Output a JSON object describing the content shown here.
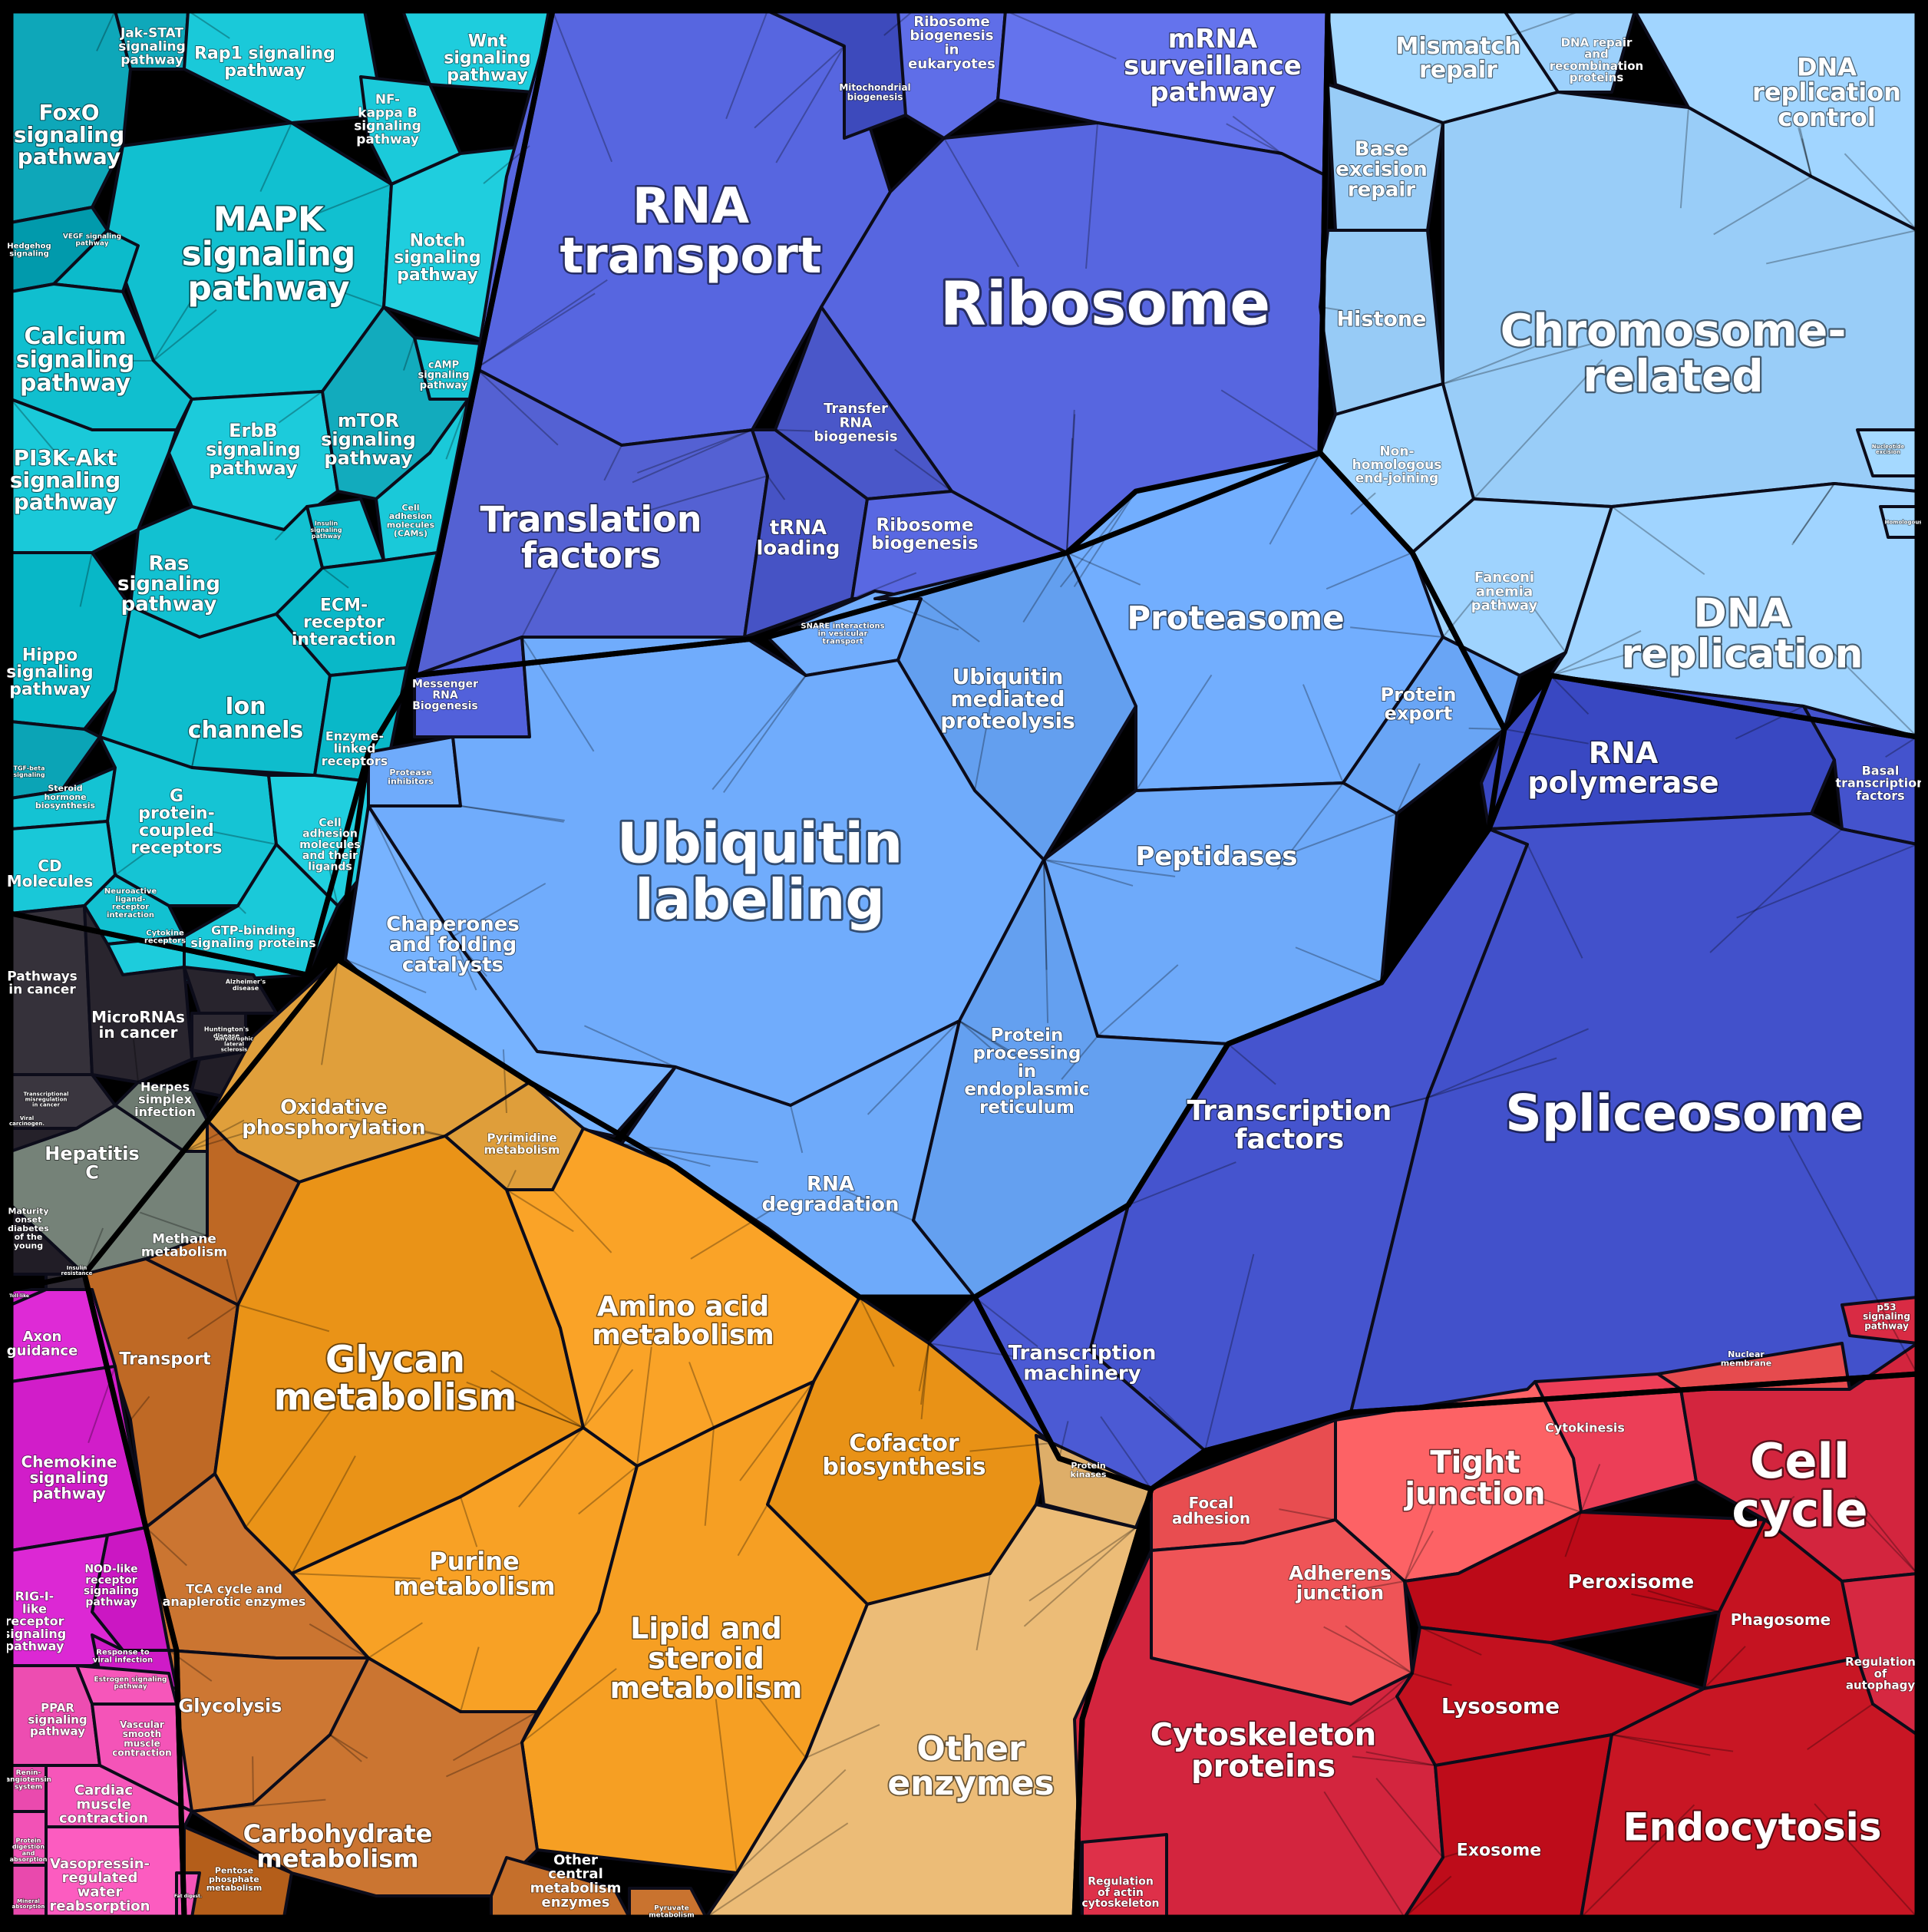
{
  "colors": {
    "teal": "#15c4d4",
    "teal_dark": "#0aa3b5",
    "indigo": "#5766e0",
    "indigo_dark": "#4a57c9",
    "blue": "#6aa6f6",
    "light_blue": "#9cd0fb",
    "dark_blue": "#4453cd",
    "orange": "#f29b1f",
    "orange_light": "#e3a23e",
    "brown": "#c06a26",
    "sand": "#e8b873",
    "dark": "#2e2a33",
    "slate": "#6d7a70",
    "magenta": "#d420cc",
    "pink": "#f050b4",
    "red": "#e0324b",
    "crimson": "#c2101e",
    "salmon": "#f2575a",
    "outline": "#000000"
  },
  "regions": {
    "signaling": [
      {
        "id": "mapk",
        "label": "MAPK signaling pathway"
      },
      {
        "id": "foxo",
        "label": "FoxO signaling pathway"
      },
      {
        "id": "jak",
        "label": "Jak-STAT signaling pathway"
      },
      {
        "id": "rap1",
        "label": "Rap1 signaling pathway"
      },
      {
        "id": "wnt",
        "label": "Wnt signaling pathway"
      },
      {
        "id": "nfkb",
        "label": "NF-kappa B signaling pathway"
      },
      {
        "id": "notch",
        "label": "Notch signaling pathway"
      },
      {
        "id": "calcium",
        "label": "Calcium signaling pathway"
      },
      {
        "id": "pi3k",
        "label": "PI3K-Akt signaling pathway"
      },
      {
        "id": "erbb",
        "label": "ErbB signaling pathway"
      },
      {
        "id": "mtor",
        "label": "mTOR signaling pathway"
      },
      {
        "id": "camp",
        "label": "cAMP signaling pathway"
      },
      {
        "id": "ras",
        "label": "Ras signaling pathway"
      },
      {
        "id": "cams",
        "label": "Cell adhesion molecules (CAMs)"
      },
      {
        "id": "ecm",
        "label": "ECM-receptor interaction"
      },
      {
        "id": "hippo",
        "label": "Hippo signaling pathway"
      },
      {
        "id": "ion",
        "label": "Ion channels"
      },
      {
        "id": "enzlinked",
        "label": "Enzyme-linked receptors"
      },
      {
        "id": "steroid",
        "label": "Steroid hormone biosynthesis"
      },
      {
        "id": "gpcr",
        "label": "G protein-coupled receptors"
      },
      {
        "id": "cellad",
        "label": "Cell adhesion molecules and their ligands"
      },
      {
        "id": "cd",
        "label": "CD Molecules"
      },
      {
        "id": "neuro",
        "label": "Neuroactive ligand-receptor interaction"
      },
      {
        "id": "cytokine",
        "label": "Cytokine receptors"
      },
      {
        "id": "gtp",
        "label": "GTP-binding signaling proteins"
      },
      {
        "id": "hedgehog",
        "label": "Hedgehog signaling pathway"
      },
      {
        "id": "vegf",
        "label": "VEGF signaling pathway"
      },
      {
        "id": "tgf",
        "label": "TGF-beta signaling pathway"
      },
      {
        "id": "insulin",
        "label": "Insulin signaling pathway"
      }
    ],
    "translation": [
      {
        "id": "rnatransport",
        "label": "RNA transport"
      },
      {
        "id": "ribosome",
        "label": "Ribosome"
      },
      {
        "id": "mrnasurv",
        "label": "mRNA surveillance pathway"
      },
      {
        "id": "ribosomebioeuk",
        "label": "Ribosome biogenesis in eukaryotes"
      },
      {
        "id": "mitobio",
        "label": "Mitochondrial biogenesis"
      },
      {
        "id": "transfer",
        "label": "Transfer RNA biogenesis"
      },
      {
        "id": "translation",
        "label": "Translation factors"
      },
      {
        "id": "trna",
        "label": "tRNA loading"
      },
      {
        "id": "ribobio",
        "label": "Ribosome biogenesis"
      },
      {
        "id": "messenger",
        "label": "Messenger RNA Biogenesis"
      }
    ],
    "chromosome": [
      {
        "id": "mismatch",
        "label": "Mismatch repair"
      },
      {
        "id": "dnarepairprot",
        "label": "DNA repair and recombination proteins"
      },
      {
        "id": "dnarepctrl",
        "label": "DNA replication control"
      },
      {
        "id": "base",
        "label": "Base excision repair"
      },
      {
        "id": "histone",
        "label": "Histone"
      },
      {
        "id": "chromosome",
        "label": "Chromosome-related"
      },
      {
        "id": "nhej",
        "label": "Non-homologous end-joining"
      },
      {
        "id": "fanconi",
        "label": "Fanconi anemia pathway"
      },
      {
        "id": "dnarep",
        "label": "DNA replication"
      },
      {
        "id": "nucleotide",
        "label": "Nucleotide excision repair"
      },
      {
        "id": "homologous",
        "label": "Homologous recombination"
      }
    ],
    "proteostasis": [
      {
        "id": "ubiquitin",
        "label": "Ubiquitin labeling"
      },
      {
        "id": "ubimed",
        "label": "Ubiquitin mediated proteolysis"
      },
      {
        "id": "snare",
        "label": "SNARE interactions in vesicular transport"
      },
      {
        "id": "proteasome",
        "label": "Proteasome"
      },
      {
        "id": "protexport",
        "label": "Protein export"
      },
      {
        "id": "peptidases",
        "label": "Peptidases"
      },
      {
        "id": "protinhib",
        "label": "Protease inhibitors"
      },
      {
        "id": "chaperones",
        "label": "Chaperones and folding catalysts"
      },
      {
        "id": "protproc",
        "label": "Protein processing in endoplasmic reticulum"
      },
      {
        "id": "rnadeg",
        "label": "RNA degradation"
      }
    ],
    "transcription": [
      {
        "id": "rnapol",
        "label": "RNA polymerase"
      },
      {
        "id": "basal",
        "label": "Basal transcription factors"
      },
      {
        "id": "spliceosome",
        "label": "Spliceosome"
      },
      {
        "id": "tf",
        "label": "Transcription factors"
      },
      {
        "id": "tm",
        "label": "Transcription machinery"
      }
    ],
    "disease": [
      {
        "id": "pathcancer",
        "label": "Pathways in cancer"
      },
      {
        "id": "mirna",
        "label": "MicroRNAs in cancer"
      },
      {
        "id": "alz",
        "label": "Alzheimer's disease"
      },
      {
        "id": "hunt",
        "label": "Huntington's disease"
      },
      {
        "id": "amyo",
        "label": "Amyotrophic lateral sclerosis"
      },
      {
        "id": "tmis",
        "label": "Transcriptional misregulation in cancer"
      },
      {
        "id": "herpes",
        "label": "Herpes simplex infection"
      },
      {
        "id": "hepc",
        "label": "Hepatitis C"
      },
      {
        "id": "mody",
        "label": "Maturity onset diabetes of the young"
      },
      {
        "id": "viral",
        "label": "Viral carcinogenesis"
      },
      {
        "id": "insres",
        "label": "Insulin resistance"
      }
    ],
    "metabolism": [
      {
        "id": "oxphos",
        "label": "Oxidative phosphorylation"
      },
      {
        "id": "pyrim",
        "label": "Pyrimidine metabolism"
      },
      {
        "id": "methane",
        "label": "Methane metabolism"
      },
      {
        "id": "transport",
        "label": "Transport"
      },
      {
        "id": "glycan",
        "label": "Glycan metabolism"
      },
      {
        "id": "aa",
        "label": "Amino acid metabolism"
      },
      {
        "id": "cofactor",
        "label": "Cofactor biosynthesis"
      },
      {
        "id": "purine",
        "label": "Purine metabolism"
      },
      {
        "id": "tca",
        "label": "TCA cycle and anaplerotic enzymes"
      },
      {
        "id": "lipid",
        "label": "Lipid and steroid metabolism"
      },
      {
        "id": "glycolysis",
        "label": "Glycolysis"
      },
      {
        "id": "carb",
        "label": "Carbohydrate metabolism"
      },
      {
        "id": "pentose",
        "label": "Pentose phosphate metabolism"
      },
      {
        "id": "othercentral",
        "label": "Other central metabolism enzymes"
      },
      {
        "id": "pyruvate",
        "label": "Pyruvate metabolism"
      },
      {
        "id": "protkin",
        "label": "Protein kinases"
      },
      {
        "id": "otherenz",
        "label": "Other enzymes"
      }
    ],
    "immune": [
      {
        "id": "axon",
        "label": "Axon guidance"
      },
      {
        "id": "chemokine",
        "label": "Chemokine signaling pathway"
      },
      {
        "id": "nod",
        "label": "NOD-like receptor signaling pathway"
      },
      {
        "id": "rig",
        "label": "RIG-I-like receptor signaling pathway"
      },
      {
        "id": "viralresp",
        "label": "Response to viral infection"
      },
      {
        "id": "estrogen",
        "label": "Estrogen signaling pathway"
      },
      {
        "id": "ppar",
        "label": "PPAR signaling pathway"
      },
      {
        "id": "vascular",
        "label": "Vascular smooth muscle contraction"
      },
      {
        "id": "reninang",
        "label": "Renin-angiotensin system"
      },
      {
        "id": "cardiac",
        "label": "Cardiac muscle contraction"
      },
      {
        "id": "protdig",
        "label": "Protein digestion and absorption"
      },
      {
        "id": "vaso",
        "label": "Vasopressin-regulated water reabsorption"
      },
      {
        "id": "mineral",
        "label": "Mineral absorption"
      },
      {
        "id": "fatdig",
        "label": "Fat digestion and absorption"
      },
      {
        "id": "toll",
        "label": "Toll-like receptor signaling"
      },
      {
        "id": "p53",
        "label": "p53 signaling pathway"
      }
    ],
    "cellular": [
      {
        "id": "nucmem",
        "label": "Nuclear membrane"
      },
      {
        "id": "cytokinesis",
        "label": "Cytokinesis"
      },
      {
        "id": "tight",
        "label": "Tight junction"
      },
      {
        "id": "cellcycle",
        "label": "Cell cycle"
      },
      {
        "id": "focal",
        "label": "Focal adhesion"
      },
      {
        "id": "adherens",
        "label": "Adherens junction"
      },
      {
        "id": "peroxisome",
        "label": "Peroxisome"
      },
      {
        "id": "phagosome",
        "label": "Phagosome"
      },
      {
        "id": "regauto",
        "label": "Regulation of autophagy"
      },
      {
        "id": "lysosome",
        "label": "Lysosome"
      },
      {
        "id": "cytoskel",
        "label": "Cytoskeleton proteins"
      },
      {
        "id": "exosome",
        "label": "Exosome"
      },
      {
        "id": "endocytosis",
        "label": "Endocytosis"
      },
      {
        "id": "regactin",
        "label": "Regulation of actin cytoskeleton"
      }
    ]
  }
}
